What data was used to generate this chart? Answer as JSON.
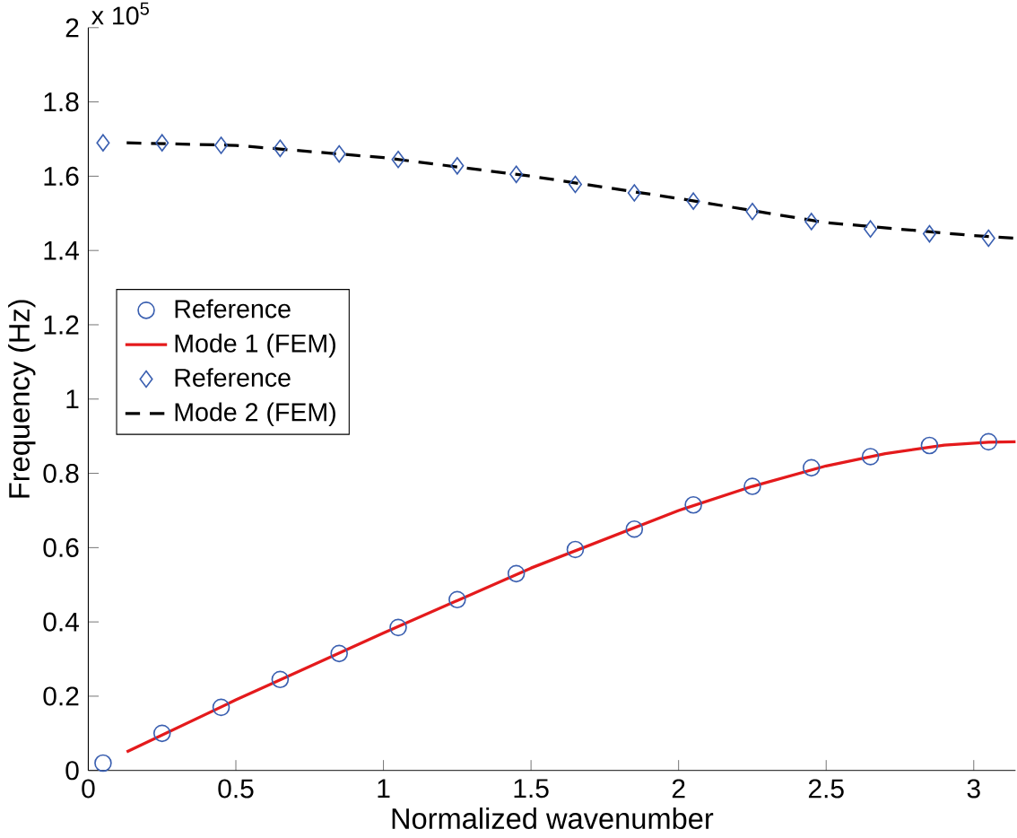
{
  "chart_data": {
    "type": "line",
    "xlabel": "Normalized wavenumber",
    "ylabel": "Frequency (Hz)",
    "annotations": [
      "x 10$^{5}$"
    ],
    "xlim": [
      0,
      3.1416
    ],
    "ylim": [
      0,
      2
    ],
    "xticks": [
      0,
      0.5,
      1,
      1.5,
      2,
      2.5,
      3
    ],
    "yticks": [
      0,
      0.2,
      0.4,
      0.6,
      0.8,
      1,
      1.2,
      1.4,
      1.6,
      1.8,
      2
    ],
    "grid": false,
    "legend": "left",
    "series": [
      {
        "name": "Reference",
        "type": "scatter",
        "marker": "circle",
        "color": "#3a5fb0",
        "x": [
          0.05,
          0.25,
          0.45,
          0.65,
          0.85,
          1.05,
          1.25,
          1.45,
          1.65,
          1.85,
          2.05,
          2.25,
          2.45,
          2.65,
          2.85,
          3.05
        ],
        "values": [
          0.02,
          0.1,
          0.17,
          0.245,
          0.315,
          0.385,
          0.46,
          0.53,
          0.595,
          0.65,
          0.715,
          0.765,
          0.815,
          0.845,
          0.875,
          0.885
        ]
      },
      {
        "name": "Mode 1 (FEM)",
        "type": "line",
        "line_style": "solid",
        "color": "#e41a1c",
        "x": [
          0.13,
          0.5,
          1.0,
          1.5,
          2.0,
          2.25,
          2.5,
          2.7,
          2.9,
          3.05,
          3.1416
        ],
        "values": [
          0.05,
          0.19,
          0.37,
          0.545,
          0.7,
          0.765,
          0.82,
          0.853,
          0.876,
          0.884,
          0.885
        ]
      },
      {
        "name": "Reference",
        "type": "scatter",
        "marker": "diamond",
        "color": "#3a5fb0",
        "x": [
          0.05,
          0.25,
          0.45,
          0.65,
          0.85,
          1.05,
          1.25,
          1.45,
          1.65,
          1.85,
          2.05,
          2.25,
          2.45,
          2.65,
          2.85,
          3.05
        ],
        "values": [
          1.69,
          1.69,
          1.683,
          1.675,
          1.66,
          1.645,
          1.628,
          1.605,
          1.578,
          1.555,
          1.533,
          1.505,
          1.478,
          1.458,
          1.445,
          1.433
        ]
      },
      {
        "name": "Mode 2 (FEM)",
        "type": "line",
        "line_style": "dashed",
        "color": "#000000",
        "x": [
          0.13,
          0.5,
          1.0,
          1.5,
          2.0,
          2.5,
          3.0,
          3.1416
        ],
        "values": [
          1.69,
          1.683,
          1.65,
          1.6,
          1.54,
          1.475,
          1.44,
          1.433
        ]
      }
    ]
  }
}
